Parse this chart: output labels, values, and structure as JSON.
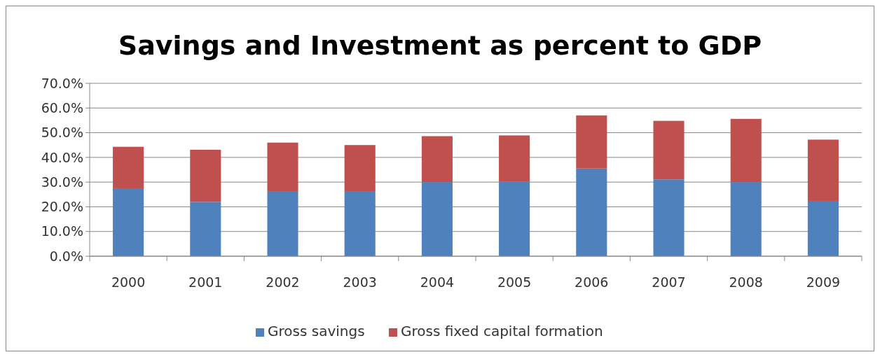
{
  "chart_data": {
    "type": "bar",
    "title": "Savings and Investment as percent to GDP",
    "stacked": true,
    "categories": [
      "2000",
      "2001",
      "2002",
      "2003",
      "2004",
      "2005",
      "2006",
      "2007",
      "2008",
      "2009"
    ],
    "series": [
      {
        "name": "Gross savings",
        "color": "#4f81bd",
        "values": [
          27.5,
          22.0,
          26.1,
          26.1,
          30.0,
          30.3,
          35.5,
          31.1,
          30.0,
          22.4
        ]
      },
      {
        "name": "Gross fixed capital formation",
        "color": "#c0504d",
        "values": [
          16.8,
          21.1,
          19.9,
          18.9,
          18.6,
          18.6,
          21.5,
          23.7,
          25.6,
          24.8
        ]
      }
    ],
    "ylim": [
      0,
      70
    ],
    "yticks": [
      {
        "value": 0,
        "label": "0.0%"
      },
      {
        "value": 10,
        "label": "10.0%"
      },
      {
        "value": 20,
        "label": "20.0%"
      },
      {
        "value": 30,
        "label": "30.0%"
      },
      {
        "value": 40,
        "label": "40.0%"
      },
      {
        "value": 50,
        "label": "50.0%"
      },
      {
        "value": 60,
        "label": "60.0%"
      },
      {
        "value": 70,
        "label": "70.0%"
      }
    ],
    "grid": "y",
    "legend": "bottom"
  }
}
